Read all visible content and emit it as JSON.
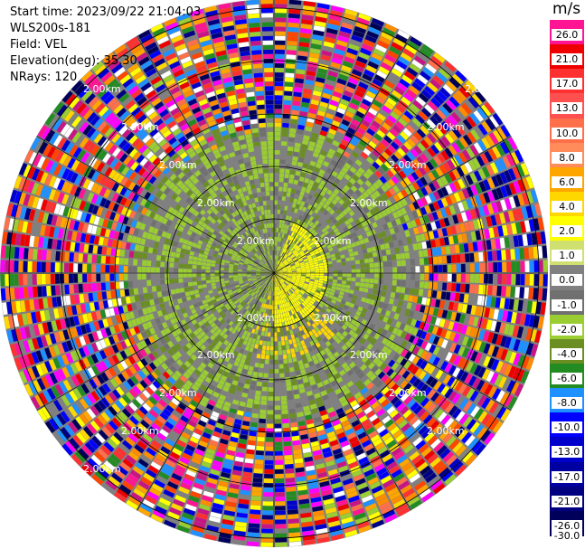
{
  "header": {
    "start_time": "Start time: 2023/09/22 21:04:03",
    "instrument": "WLS200s-181",
    "field": "Field: VEL",
    "elevation": "Elevation(deg): 35.30",
    "nrays": "NRays: 120"
  },
  "chart_data": {
    "type": "heatmap",
    "projection": "polar-ppi",
    "field": "VEL",
    "units": "m/s",
    "nrays": 120,
    "elevation_deg": 35.3,
    "range_rings_km": [
      1,
      2,
      3,
      4,
      5,
      6
    ],
    "ring_label": "2.00km",
    "colorbar": {
      "units": "m/s",
      "ticks": [
        "26.0",
        "21.0",
        "17.0",
        "13.0",
        "10.0",
        "8.0",
        "6.0",
        "4.0",
        "2.0",
        "1.0",
        "0.0",
        "-1.0",
        "-2.0",
        "-4.0",
        "-6.0",
        "-8.0",
        "-10.0",
        "-13.0",
        "-17.0",
        "-21.0",
        "-26.0",
        "-30.0"
      ],
      "colors": [
        "#ff1493",
        "#ee0000",
        "#ff3030",
        "#ff5050",
        "#ff6f4a",
        "#ff8c5a",
        "#ffa500",
        "#ffd700",
        "#ffff00",
        "#d0e070",
        "#808080",
        "#707070",
        "#9acd32",
        "#6b8e23",
        "#228b22",
        "#1e90ff",
        "#0000ff",
        "#0000cd",
        "#0000a0",
        "#000080",
        "#00005a"
      ]
    },
    "regions": [
      {
        "range_km": [
          0,
          3.2
        ],
        "dominant": "0.0 to -2.0 (grey/olive), positive 2.0 patches east"
      },
      {
        "range_km": [
          3.2,
          6.5
        ],
        "dominant": "noise (all colors)"
      }
    ]
  }
}
